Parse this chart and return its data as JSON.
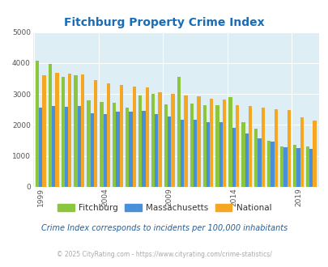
{
  "title": "Fitchburg Property Crime Index",
  "subtitle": "Crime Index corresponds to incidents per 100,000 inhabitants",
  "footer": "© 2025 CityRating.com - https://www.cityrating.com/crime-statistics/",
  "years": [
    1999,
    2000,
    2001,
    2002,
    2003,
    2004,
    2005,
    2006,
    2007,
    2008,
    2009,
    2010,
    2011,
    2012,
    2013,
    2014,
    2015,
    2016,
    2017,
    2018,
    2019,
    2020
  ],
  "fitchburg": [
    4080,
    3980,
    3560,
    3600,
    2800,
    2740,
    2720,
    2560,
    2950,
    3000,
    2660,
    3550,
    2680,
    2630,
    2650,
    2890,
    2090,
    1870,
    1480,
    1300,
    1350,
    1300
  ],
  "massachusetts": [
    2560,
    2620,
    2590,
    2600,
    2380,
    2360,
    2420,
    2430,
    2450,
    2340,
    2280,
    2175,
    2170,
    2100,
    2080,
    1900,
    1730,
    1580,
    1470,
    1290,
    1260,
    1220
  ],
  "national": [
    3610,
    3680,
    3660,
    3620,
    3460,
    3350,
    3300,
    3250,
    3210,
    3060,
    3010,
    2950,
    2930,
    2860,
    2810,
    2650,
    2600,
    2570,
    2500,
    2470,
    2240,
    2150
  ],
  "bar_colors": {
    "fitchburg": "#8cc63f",
    "massachusetts": "#4a90d9",
    "national": "#f5a623"
  },
  "ylim": [
    0,
    5000
  ],
  "yticks": [
    0,
    1000,
    2000,
    3000,
    4000,
    5000
  ],
  "xtick_years": [
    1999,
    2004,
    2009,
    2014,
    2019
  ],
  "plot_bg_color": "#deeef5",
  "title_color": "#1a6db5",
  "subtitle_color": "#2060a0",
  "footer_color": "#aaaaaa",
  "legend_label_color": "#333333"
}
